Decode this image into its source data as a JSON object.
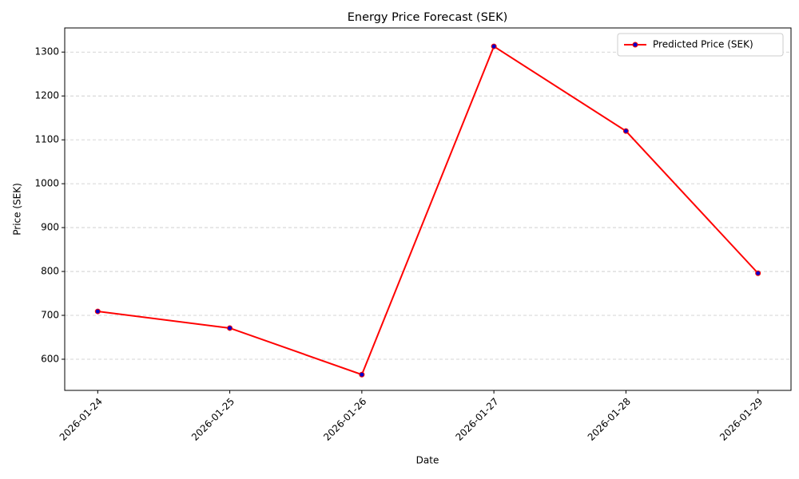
{
  "chart_data": {
    "type": "line",
    "title": "Energy Price Forecast (SEK)",
    "x_label": "Date",
    "y_label": "Price (SEK)",
    "x": [
      "2026-01-24",
      "2026-01-25",
      "2026-01-26",
      "2026-01-27",
      "2026-01-28",
      "2026-01-29"
    ],
    "xticks": [
      "2026-01-24",
      "2026-01-25",
      "2026-01-26",
      "2026-01-27",
      "2026-01-28",
      "2026-01-29"
    ],
    "series": [
      {
        "name": "Predicted Price (SEK)",
        "color": "#ff0000",
        "marker_color": "#0000cc",
        "values": [
          709,
          671,
          565,
          1313,
          1120,
          796
        ]
      }
    ],
    "ylim": [
      529,
      1355
    ],
    "yticks": [
      600,
      700,
      800,
      900,
      1000,
      1100,
      1200,
      1300
    ],
    "grid": true,
    "legend": "upper right"
  }
}
